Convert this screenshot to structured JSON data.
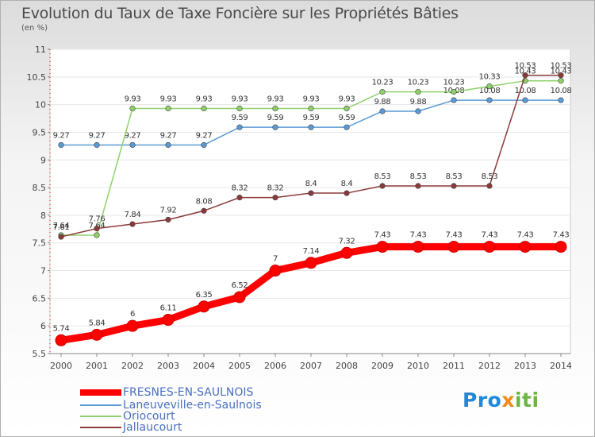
{
  "chart_data": {
    "type": "line",
    "title": "Evolution du Taux de Taxe Foncière sur les Propriétés Bâties",
    "unit_label": "(en %)",
    "xlabel": "",
    "ylabel": "",
    "x": [
      "2000",
      "2001",
      "2002",
      "2003",
      "2004",
      "2005",
      "2006",
      "2007",
      "2008",
      "2009",
      "2010",
      "2011",
      "2012",
      "2013",
      "2014"
    ],
    "ylim": [
      5.5,
      11
    ],
    "yticks": [
      5.5,
      6,
      6.5,
      7,
      7.5,
      8,
      8.5,
      9,
      9.5,
      10,
      10.5,
      11
    ],
    "ytick_labels": [
      "5.5",
      "6",
      "6.5",
      "7",
      "7.5",
      "8",
      "8.5",
      "9",
      "9.5",
      "10",
      "10.5",
      "11"
    ],
    "grid": "horizontal",
    "legend_position": "bottom-left",
    "series": [
      {
        "name": "FRESNES-EN-SAULNOIS",
        "color": "#ff0000",
        "values": [
          5.74,
          5.84,
          6,
          6.11,
          6.35,
          6.52,
          7,
          7.14,
          7.32,
          7.43,
          7.43,
          7.43,
          7.43,
          7.43,
          7.43
        ],
        "labels": [
          "5.74",
          "5.84",
          "6",
          "6.11",
          "6.35",
          "6.52",
          "7",
          "7.14",
          "7.32",
          "7.43",
          "7.43",
          "7.43",
          "7.43",
          "7.43",
          "7.43"
        ]
      },
      {
        "name": "Laneuveville-en-Saulnois",
        "color": "#5b9bd5",
        "values": [
          9.27,
          9.27,
          9.27,
          9.27,
          9.27,
          9.59,
          9.59,
          9.59,
          9.59,
          9.88,
          9.88,
          10.08,
          10.08,
          10.08,
          10.08
        ],
        "labels": [
          "9.27",
          "9.27",
          "9.27",
          "9.27",
          "9.27",
          "9.59",
          "9.59",
          "9.59",
          "9.59",
          "9.88",
          "9.88",
          "10.08",
          "10.08",
          "10.08",
          "10.08"
        ]
      },
      {
        "name": "Oriocourt",
        "color": "#8fd16a",
        "values": [
          7.64,
          7.64,
          9.93,
          9.93,
          9.93,
          9.93,
          9.93,
          9.93,
          9.93,
          10.23,
          10.23,
          10.23,
          10.33,
          10.43,
          10.43
        ],
        "labels": [
          "7.64",
          "7.64",
          "9.93",
          "9.93",
          "9.93",
          "9.93",
          "9.93",
          "9.93",
          "9.93",
          "10.23",
          "10.23",
          "10.23",
          "10.33",
          "10.43",
          "10.43"
        ]
      },
      {
        "name": "Jallaucourt",
        "color": "#8b3a3a",
        "values": [
          7.61,
          7.76,
          7.84,
          7.92,
          8.08,
          8.32,
          8.32,
          8.4,
          8.4,
          8.53,
          8.53,
          8.53,
          8.53,
          10.53,
          10.53
        ],
        "labels": [
          "7.61",
          "7.76",
          "7.84",
          "7.92",
          "8.08",
          "8.32",
          "8.32",
          "8.4",
          "8.4",
          "8.53",
          "8.53",
          "8.53",
          "8.53",
          "10.53",
          "10.53"
        ]
      }
    ]
  },
  "brand": {
    "part1": "Pro",
    "part2": "x",
    "part3": "iti"
  }
}
